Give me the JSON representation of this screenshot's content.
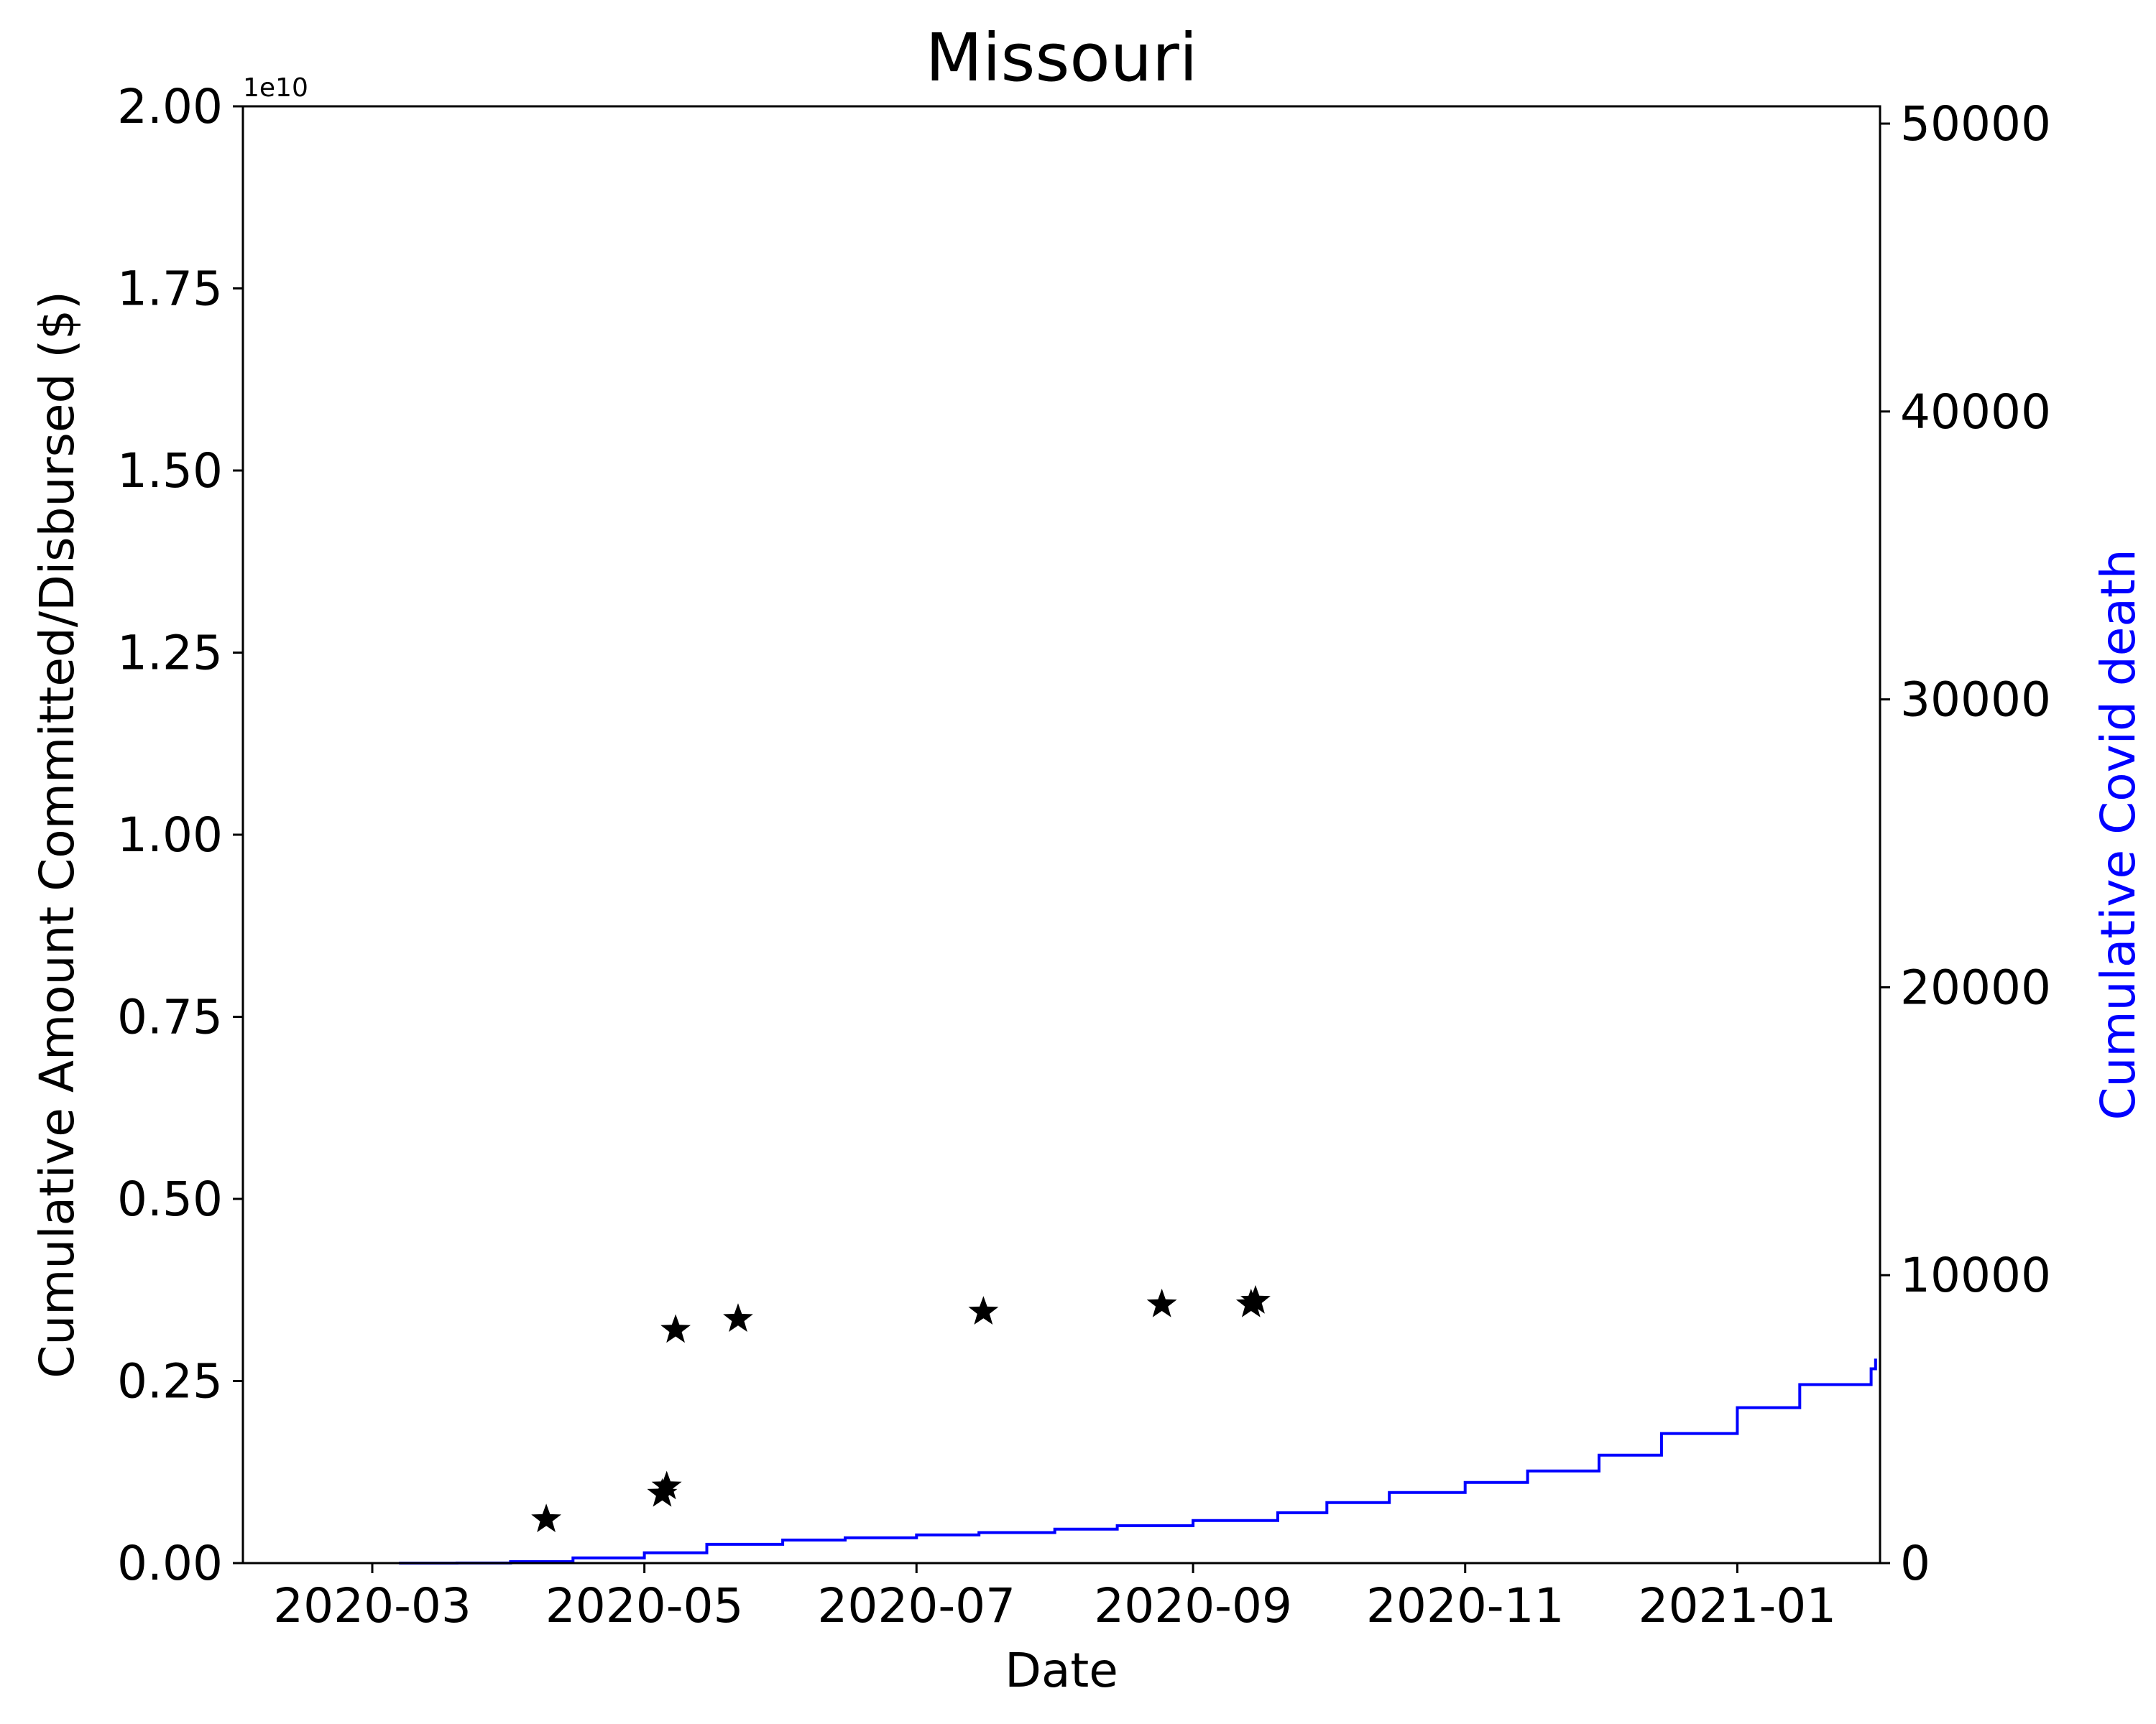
{
  "chart_data": {
    "type": "scatter",
    "title": "Missouri",
    "xlabel": "Date",
    "ylabel_left": "Cumulative Amount Committed/Disbursed ($)",
    "ylabel_right": "Cumulative Covid death",
    "left_axis_offset_text": "1e10",
    "xlim": [
      "2020-02-01",
      "2021-02-02"
    ],
    "ylim_left": [
      0,
      2.0
    ],
    "ylim_right": [
      0,
      50600
    ],
    "x_ticks": [
      "2020-03",
      "2020-05",
      "2020-07",
      "2020-09",
      "2020-11",
      "2021-01"
    ],
    "y_ticks_left": [
      "0.00",
      "0.25",
      "0.50",
      "0.75",
      "1.00",
      "1.25",
      "1.50",
      "1.75",
      "2.00"
    ],
    "y_ticks_right": [
      "0",
      "10000",
      "20000",
      "30000",
      "40000",
      "50000"
    ],
    "grid": false,
    "colors": {
      "amount_markers": "#000000",
      "deaths_line": "#0000ff",
      "right_axis_label": "#0000ff"
    },
    "series": [
      {
        "axis": "left",
        "style": "star-markers",
        "points": [
          {
            "x": "2020-04-09",
            "y": 0.06
          },
          {
            "x": "2020-05-05",
            "y": 0.095
          },
          {
            "x": "2020-05-06",
            "y": 0.105
          },
          {
            "x": "2020-05-08",
            "y": 0.32
          },
          {
            "x": "2020-05-22",
            "y": 0.335
          },
          {
            "x": "2020-07-16",
            "y": 0.345
          },
          {
            "x": "2020-08-25",
            "y": 0.355
          },
          {
            "x": "2020-09-14",
            "y": 0.355
          },
          {
            "x": "2020-09-15",
            "y": 0.36
          }
        ]
      },
      {
        "axis": "right",
        "style": "step-line",
        "points": [
          {
            "x": "2020-03-07",
            "y": 0
          },
          {
            "x": "2020-03-20",
            "y": 2
          },
          {
            "x": "2020-04-01",
            "y": 50
          },
          {
            "x": "2020-04-15",
            "y": 180
          },
          {
            "x": "2020-05-01",
            "y": 360
          },
          {
            "x": "2020-05-15",
            "y": 650
          },
          {
            "x": "2020-06-01",
            "y": 800
          },
          {
            "x": "2020-06-15",
            "y": 880
          },
          {
            "x": "2020-07-01",
            "y": 980
          },
          {
            "x": "2020-07-15",
            "y": 1060
          },
          {
            "x": "2020-08-01",
            "y": 1180
          },
          {
            "x": "2020-08-15",
            "y": 1300
          },
          {
            "x": "2020-09-01",
            "y": 1480
          },
          {
            "x": "2020-09-20",
            "y": 1750
          },
          {
            "x": "2020-10-01",
            "y": 2100
          },
          {
            "x": "2020-10-15",
            "y": 2450
          },
          {
            "x": "2020-11-01",
            "y": 2800
          },
          {
            "x": "2020-11-15",
            "y": 3200
          },
          {
            "x": "2020-12-01",
            "y": 3750
          },
          {
            "x": "2020-12-15",
            "y": 4500
          },
          {
            "x": "2021-01-01",
            "y": 5400
          },
          {
            "x": "2021-01-15",
            "y": 6200
          },
          {
            "x": "2021-01-31",
            "y": 6750
          },
          {
            "x": "2021-02-01",
            "y": 7100
          }
        ]
      }
    ]
  }
}
